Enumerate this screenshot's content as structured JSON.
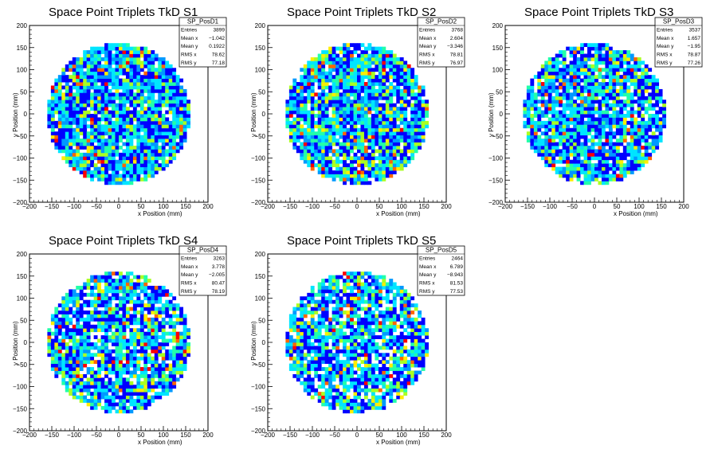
{
  "chart_data": [
    {
      "type": "heatmap",
      "title": "Space Point Triplets TkD S1",
      "xlabel": "x Position (mm)",
      "ylabel": "y Position (mm)",
      "xlim": [
        -200,
        200
      ],
      "ylim": [
        -200,
        200
      ],
      "xticks": [
        "−200",
        "−150",
        "−100",
        "−50",
        "0",
        "50",
        "100",
        "150",
        "200"
      ],
      "yticks": [
        "−200",
        "−150",
        "−100",
        "−50",
        "0",
        "50",
        "100",
        "150",
        "200"
      ],
      "distribution_radius_mm": 160,
      "bin_size_mm": 8,
      "stats": {
        "name": "SP_PosD1",
        "rows": [
          {
            "label": "Entries",
            "value": "3899"
          },
          {
            "label": "Mean x",
            "value": "−1.042"
          },
          {
            "label": "Mean y",
            "value": "0.1922"
          },
          {
            "label": "RMS x",
            "value": "78.62"
          },
          {
            "label": "RMS y",
            "value": "77.18"
          }
        ]
      }
    },
    {
      "type": "heatmap",
      "title": "Space Point Triplets TkD S2",
      "xlabel": "x Position (mm)",
      "ylabel": "y Position (mm)",
      "xlim": [
        -200,
        200
      ],
      "ylim": [
        -200,
        200
      ],
      "xticks": [
        "−200",
        "−150",
        "−100",
        "−50",
        "0",
        "50",
        "100",
        "150",
        "200"
      ],
      "yticks": [
        "−200",
        "−150",
        "−100",
        "−50",
        "0",
        "50",
        "100",
        "150",
        "200"
      ],
      "distribution_radius_mm": 160,
      "bin_size_mm": 8,
      "stats": {
        "name": "SP_PosD2",
        "rows": [
          {
            "label": "Entries",
            "value": "3768"
          },
          {
            "label": "Mean x",
            "value": "2.604"
          },
          {
            "label": "Mean y",
            "value": "−3.346"
          },
          {
            "label": "RMS x",
            "value": "78.81"
          },
          {
            "label": "RMS y",
            "value": "76.97"
          }
        ]
      }
    },
    {
      "type": "heatmap",
      "title": "Space Point Triplets TkD S3",
      "xlabel": "x Position (mm)",
      "ylabel": "y Position (mm)",
      "xlim": [
        -200,
        200
      ],
      "ylim": [
        -200,
        200
      ],
      "xticks": [
        "−200",
        "−150",
        "−100",
        "−50",
        "0",
        "50",
        "100",
        "150",
        "200"
      ],
      "yticks": [
        "−200",
        "−150",
        "−100",
        "−50",
        "0",
        "50",
        "100",
        "150",
        "200"
      ],
      "distribution_radius_mm": 160,
      "bin_size_mm": 8,
      "stats": {
        "name": "SP_PosD3",
        "rows": [
          {
            "label": "Entries",
            "value": "3537"
          },
          {
            "label": "Mean x",
            "value": "1.657"
          },
          {
            "label": "Mean y",
            "value": "−1.95"
          },
          {
            "label": "RMS x",
            "value": "78.87"
          },
          {
            "label": "RMS y",
            "value": "77.26"
          }
        ]
      }
    },
    {
      "type": "heatmap",
      "title": "Space Point Triplets TkD S4",
      "xlabel": "x Position (mm)",
      "ylabel": "y Position (mm)",
      "xlim": [
        -200,
        200
      ],
      "ylim": [
        -200,
        200
      ],
      "xticks": [
        "−200",
        "−150",
        "−100",
        "−50",
        "0",
        "50",
        "100",
        "150",
        "200"
      ],
      "yticks": [
        "−200",
        "−150",
        "−100",
        "−50",
        "0",
        "50",
        "100",
        "150",
        "200"
      ],
      "distribution_radius_mm": 160,
      "bin_size_mm": 8,
      "stats": {
        "name": "SP_PosD4",
        "rows": [
          {
            "label": "Entries",
            "value": "3263"
          },
          {
            "label": "Mean x",
            "value": "3.778"
          },
          {
            "label": "Mean y",
            "value": "−2.005"
          },
          {
            "label": "RMS x",
            "value": "80.47"
          },
          {
            "label": "RMS y",
            "value": "78.19"
          }
        ]
      }
    },
    {
      "type": "heatmap",
      "title": "Space Point Triplets TkD S5",
      "xlabel": "x Position (mm)",
      "ylabel": "y Position (mm)",
      "xlim": [
        -200,
        200
      ],
      "ylim": [
        -200,
        200
      ],
      "xticks": [
        "−200",
        "−150",
        "−100",
        "−50",
        "0",
        "50",
        "100",
        "150",
        "200"
      ],
      "yticks": [
        "−200",
        "−150",
        "−100",
        "−50",
        "0",
        "50",
        "100",
        "150",
        "200"
      ],
      "distribution_radius_mm": 160,
      "bin_size_mm": 8,
      "stats": {
        "name": "SP_PosD5",
        "rows": [
          {
            "label": "Entries",
            "value": "2464"
          },
          {
            "label": "Mean x",
            "value": "6.789"
          },
          {
            "label": "Mean y",
            "value": "−8.943"
          },
          {
            "label": "RMS x",
            "value": "81.53"
          },
          {
            "label": "RMS y",
            "value": "77.53"
          }
        ]
      }
    }
  ],
  "colors": {
    "palette": [
      "#0000ff",
      "#0099ff",
      "#00e5ff",
      "#22ffaa",
      "#aaff22",
      "#ffee00",
      "#ff6600",
      "#ff0000"
    ],
    "frame": "#000000",
    "background": "#ffffff"
  }
}
